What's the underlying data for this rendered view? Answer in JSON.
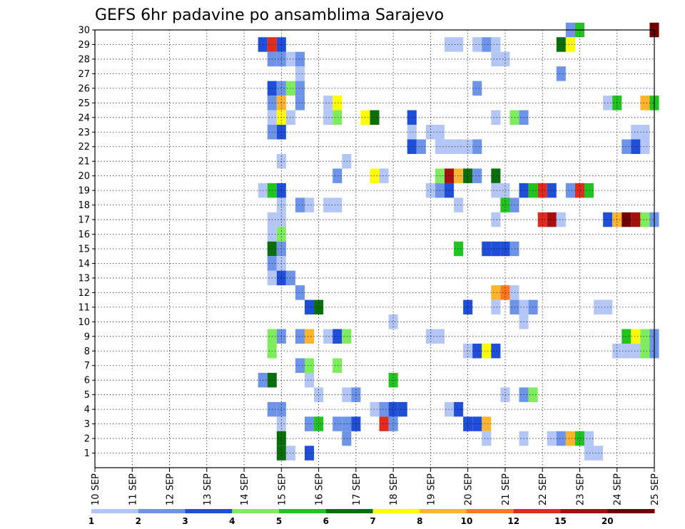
{
  "chart_data": {
    "type": "heatmap",
    "title": "GEFS 6hr padavine po ansamblima Sarajevo",
    "xlabel": "",
    "ylabel": "",
    "x_tick_labels": [
      "10 SEP",
      "11 SEP",
      "12 SEP",
      "13 SEP",
      "14 SEP",
      "15 SEP",
      "16 SEP",
      "17 SEP",
      "18 SEP",
      "19 SEP",
      "20 SEP",
      "21 SEP",
      "22 SEP",
      "23 SEP",
      "24 SEP",
      "25 SEP"
    ],
    "xlim": [
      0,
      15
    ],
    "y_tick_labels": [
      "1",
      "2",
      "3",
      "4",
      "5",
      "6",
      "7",
      "8",
      "9",
      "10",
      "11",
      "12",
      "13",
      "14",
      "15",
      "16",
      "17",
      "18",
      "19",
      "20",
      "21",
      "22",
      "23",
      "24",
      "25",
      "26",
      "27",
      "28",
      "29",
      "30"
    ],
    "ylim": [
      0,
      30
    ],
    "grid": true,
    "colorbar": {
      "levels": [
        "1",
        "2",
        "3",
        "4",
        "5",
        "6",
        "7",
        "8",
        "10",
        "12",
        "15",
        "20"
      ],
      "colors": [
        "#b4c6f5",
        "#6e94ea",
        "#1f4fd8",
        "#7fec5e",
        "#1fc41f",
        "#0a6e0a",
        "#ffff00",
        "#ffb42d",
        "#ff781e",
        "#e02b1f",
        "#a80f0f",
        "#6e0000"
      ]
    },
    "x_unit": "days after 10 SEP 00Z, 6-hour steps",
    "cells": [
      [
        12.75,
        30,
        1
      ],
      [
        13,
        30,
        4
      ],
      [
        15,
        30,
        11
      ],
      [
        4.5,
        29,
        2
      ],
      [
        4.75,
        29,
        9
      ],
      [
        5,
        29,
        2
      ],
      [
        9.5,
        29,
        0
      ],
      [
        9.75,
        29,
        0
      ],
      [
        10.25,
        29,
        0
      ],
      [
        10.5,
        29,
        1
      ],
      [
        10.75,
        29,
        0
      ],
      [
        12.5,
        29,
        5
      ],
      [
        12.75,
        29,
        6
      ],
      [
        4.75,
        28,
        1
      ],
      [
        5,
        28,
        1
      ],
      [
        5.25,
        28,
        0
      ],
      [
        5.5,
        28,
        1
      ],
      [
        10.75,
        28,
        0
      ],
      [
        11,
        28,
        0
      ],
      [
        5.5,
        27,
        0
      ],
      [
        12.5,
        27,
        1
      ],
      [
        4.75,
        26,
        2
      ],
      [
        5,
        26,
        1
      ],
      [
        5.25,
        26,
        3
      ],
      [
        5.5,
        26,
        1
      ],
      [
        10.25,
        26,
        1
      ],
      [
        4.75,
        25,
        1
      ],
      [
        5,
        25,
        7
      ],
      [
        5.5,
        25,
        1
      ],
      [
        6.25,
        25,
        0
      ],
      [
        6.5,
        25,
        6
      ],
      [
        13.75,
        25,
        0
      ],
      [
        14,
        25,
        4
      ],
      [
        14.75,
        25,
        7
      ],
      [
        15,
        25,
        4
      ],
      [
        4.75,
        24,
        0
      ],
      [
        5,
        24,
        6
      ],
      [
        5.25,
        24,
        0
      ],
      [
        6.25,
        24,
        0
      ],
      [
        6.5,
        24,
        3
      ],
      [
        7.25,
        24,
        6
      ],
      [
        7.5,
        24,
        5
      ],
      [
        8.5,
        24,
        2
      ],
      [
        10.75,
        24,
        0
      ],
      [
        11.25,
        24,
        3
      ],
      [
        11.5,
        24,
        1
      ],
      [
        4.75,
        23,
        1
      ],
      [
        5,
        23,
        2
      ],
      [
        8.5,
        23,
        0
      ],
      [
        9,
        23,
        0
      ],
      [
        9.25,
        23,
        0
      ],
      [
        14.5,
        23,
        0
      ],
      [
        14.75,
        23,
        0
      ],
      [
        8.5,
        22,
        2
      ],
      [
        8.75,
        22,
        1
      ],
      [
        9.25,
        22,
        0
      ],
      [
        9.5,
        22,
        0
      ],
      [
        9.75,
        22,
        0
      ],
      [
        10,
        22,
        0
      ],
      [
        10.25,
        22,
        1
      ],
      [
        14.25,
        22,
        1
      ],
      [
        14.5,
        22,
        2
      ],
      [
        14.75,
        22,
        0
      ],
      [
        5,
        21,
        0
      ],
      [
        6.75,
        21,
        0
      ],
      [
        6.5,
        20,
        1
      ],
      [
        7.5,
        20,
        6
      ],
      [
        7.75,
        20,
        0
      ],
      [
        9.25,
        20,
        3
      ],
      [
        9.5,
        20,
        10
      ],
      [
        9.75,
        20,
        7
      ],
      [
        10,
        20,
        5
      ],
      [
        10.25,
        20,
        1
      ],
      [
        10.75,
        20,
        5
      ],
      [
        4.5,
        19,
        0
      ],
      [
        4.75,
        19,
        4
      ],
      [
        5,
        19,
        2
      ],
      [
        9,
        19,
        0
      ],
      [
        9.25,
        19,
        1
      ],
      [
        9.5,
        19,
        2
      ],
      [
        10.75,
        19,
        0
      ],
      [
        11,
        19,
        0
      ],
      [
        11.5,
        19,
        2
      ],
      [
        11.75,
        19,
        4
      ],
      [
        12,
        19,
        9
      ],
      [
        12.25,
        19,
        2
      ],
      [
        12.75,
        19,
        1
      ],
      [
        13,
        19,
        9
      ],
      [
        13.25,
        19,
        4
      ],
      [
        5,
        18,
        0
      ],
      [
        5.5,
        18,
        1
      ],
      [
        5.75,
        18,
        0
      ],
      [
        6.25,
        18,
        0
      ],
      [
        6.5,
        18,
        0
      ],
      [
        9.75,
        18,
        0
      ],
      [
        11,
        18,
        4
      ],
      [
        11.25,
        18,
        1
      ],
      [
        4.75,
        17,
        0
      ],
      [
        5,
        17,
        0
      ],
      [
        10.75,
        17,
        0
      ],
      [
        12,
        17,
        9
      ],
      [
        12.25,
        17,
        10
      ],
      [
        12.5,
        17,
        0
      ],
      [
        13.75,
        17,
        2
      ],
      [
        14,
        17,
        7
      ],
      [
        14.25,
        17,
        11
      ],
      [
        14.5,
        17,
        10
      ],
      [
        14.75,
        17,
        3
      ],
      [
        15,
        17,
        1
      ],
      [
        4.75,
        16,
        0
      ],
      [
        5,
        16,
        3
      ],
      [
        4.75,
        15,
        5
      ],
      [
        5,
        15,
        1
      ],
      [
        9.75,
        15,
        4
      ],
      [
        10.5,
        15,
        2
      ],
      [
        10.75,
        15,
        2
      ],
      [
        11,
        15,
        2
      ],
      [
        11.25,
        15,
        1
      ],
      [
        4.75,
        14,
        1
      ],
      [
        5,
        14,
        0
      ],
      [
        4.75,
        13,
        0
      ],
      [
        5,
        13,
        2
      ],
      [
        5.25,
        13,
        1
      ],
      [
        5.5,
        12,
        1
      ],
      [
        10.75,
        12,
        7
      ],
      [
        11,
        12,
        8
      ],
      [
        11.25,
        12,
        0
      ],
      [
        5.75,
        11,
        2
      ],
      [
        6,
        11,
        5
      ],
      [
        10,
        11,
        2
      ],
      [
        10.75,
        11,
        0
      ],
      [
        11.25,
        11,
        1
      ],
      [
        11.5,
        11,
        0
      ],
      [
        11.75,
        11,
        1
      ],
      [
        13.5,
        11,
        0
      ],
      [
        13.75,
        11,
        0
      ],
      [
        8,
        10,
        0
      ],
      [
        11.5,
        10,
        0
      ],
      [
        4.75,
        9,
        3
      ],
      [
        5,
        9,
        1
      ],
      [
        5.5,
        9,
        1
      ],
      [
        5.75,
        9,
        7
      ],
      [
        6.25,
        9,
        0
      ],
      [
        6.5,
        9,
        2
      ],
      [
        6.75,
        9,
        3
      ],
      [
        9,
        9,
        0
      ],
      [
        9.25,
        9,
        0
      ],
      [
        14.25,
        9,
        4
      ],
      [
        14.5,
        9,
        6
      ],
      [
        14.75,
        9,
        3
      ],
      [
        15,
        9,
        1
      ],
      [
        4.75,
        8,
        3
      ],
      [
        10,
        8,
        0
      ],
      [
        10.25,
        8,
        2
      ],
      [
        10.5,
        8,
        6
      ],
      [
        10.75,
        8,
        2
      ],
      [
        14,
        8,
        0
      ],
      [
        14.25,
        8,
        0
      ],
      [
        14.5,
        8,
        0
      ],
      [
        14.75,
        8,
        3
      ],
      [
        15,
        8,
        1
      ],
      [
        5.5,
        7,
        1
      ],
      [
        5.75,
        7,
        3
      ],
      [
        6.5,
        7,
        3
      ],
      [
        4.5,
        6,
        1
      ],
      [
        4.75,
        6,
        5
      ],
      [
        5.75,
        6,
        0
      ],
      [
        8,
        6,
        4
      ],
      [
        6,
        5,
        0
      ],
      [
        6.75,
        5,
        0
      ],
      [
        7,
        5,
        1
      ],
      [
        11,
        5,
        0
      ],
      [
        11.5,
        5,
        1
      ],
      [
        11.75,
        5,
        3
      ],
      [
        4.75,
        4,
        1
      ],
      [
        5,
        4,
        1
      ],
      [
        7.5,
        4,
        0
      ],
      [
        7.75,
        4,
        1
      ],
      [
        8,
        4,
        2
      ],
      [
        8.25,
        4,
        2
      ],
      [
        9.5,
        4,
        0
      ],
      [
        9.75,
        4,
        2
      ],
      [
        5,
        3,
        0
      ],
      [
        5.75,
        3,
        1
      ],
      [
        6,
        3,
        4
      ],
      [
        6.5,
        3,
        1
      ],
      [
        6.75,
        3,
        1
      ],
      [
        7,
        3,
        2
      ],
      [
        7.75,
        3,
        9
      ],
      [
        8,
        3,
        1
      ],
      [
        10,
        3,
        2
      ],
      [
        10.25,
        3,
        2
      ],
      [
        10.5,
        3,
        7
      ],
      [
        5,
        2,
        5
      ],
      [
        6.75,
        2,
        1
      ],
      [
        10.5,
        2,
        0
      ],
      [
        11.5,
        2,
        0
      ],
      [
        12.25,
        2,
        0
      ],
      [
        12.5,
        2,
        1
      ],
      [
        12.75,
        2,
        7
      ],
      [
        13,
        2,
        4
      ],
      [
        13.25,
        2,
        0
      ],
      [
        5,
        1,
        5
      ],
      [
        5.25,
        1,
        0
      ],
      [
        5.75,
        1,
        2
      ],
      [
        13.25,
        1,
        0
      ],
      [
        13.5,
        1,
        0
      ]
    ]
  }
}
